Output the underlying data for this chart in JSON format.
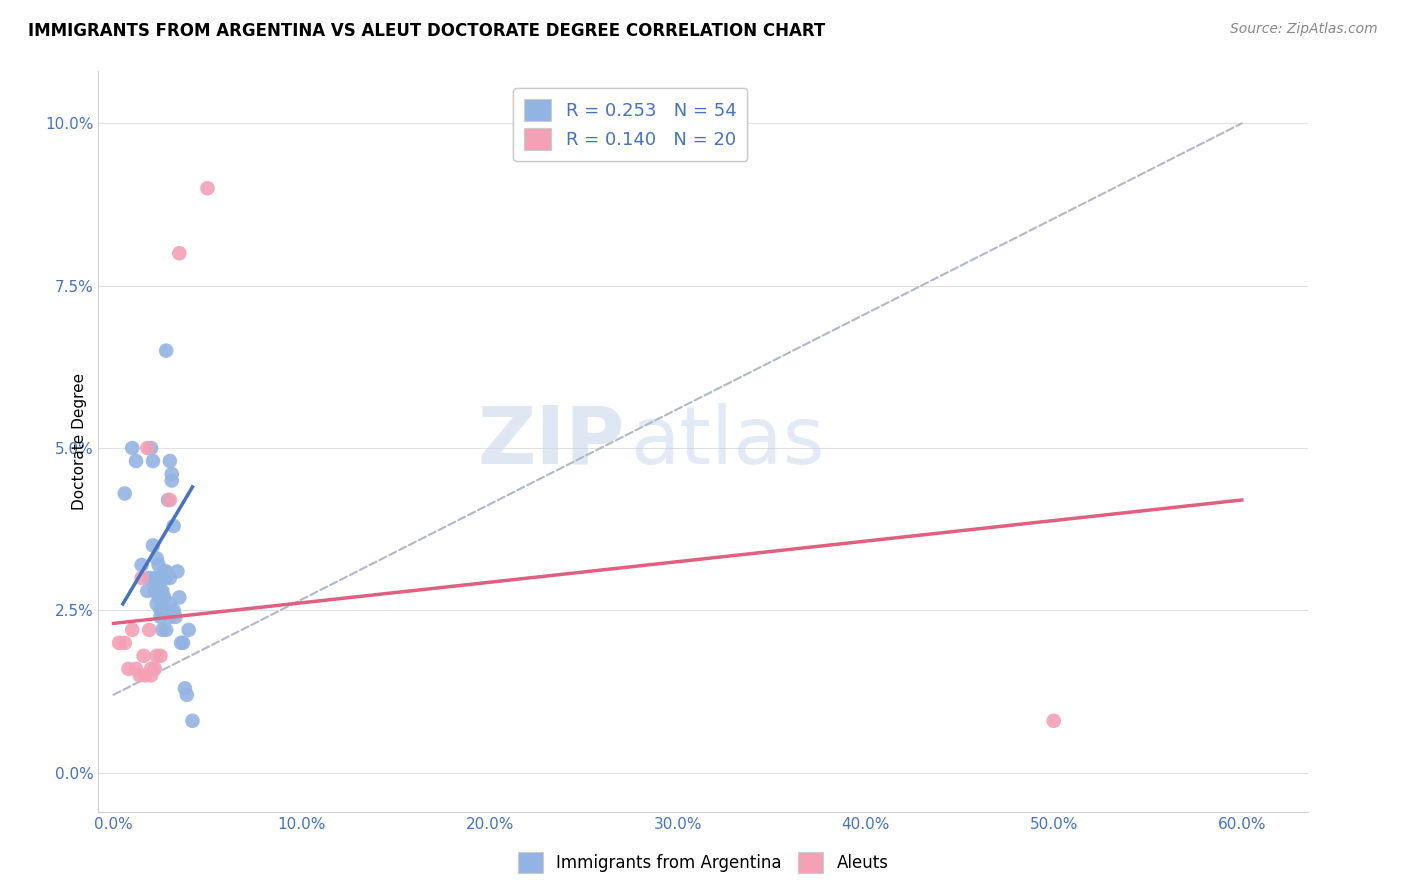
{
  "title": "IMMIGRANTS FROM ARGENTINA VS ALEUT DOCTORATE DEGREE CORRELATION CHART",
  "source": "Source: ZipAtlas.com",
  "xlabel_ticks": [
    "0.0%",
    "10.0%",
    "20.0%",
    "30.0%",
    "40.0%",
    "50.0%",
    "60.0%"
  ],
  "xlabel_tick_vals": [
    0.0,
    0.1,
    0.2,
    0.3,
    0.4,
    0.5,
    0.6
  ],
  "ylabel_ticks": [
    "0.0%",
    "2.5%",
    "5.0%",
    "7.5%",
    "10.0%"
  ],
  "ylabel_tick_vals": [
    0.0,
    0.025,
    0.05,
    0.075,
    0.1
  ],
  "xlim": [
    -0.008,
    0.635
  ],
  "ylim": [
    -0.006,
    0.108
  ],
  "watermark_zip": "ZIP",
  "watermark_atlas": "atlas",
  "legend_label_blue": "R = 0.253   N = 54",
  "legend_label_pink": "R = 0.140   N = 20",
  "legend_bottom_blue": "Immigrants from Argentina",
  "legend_bottom_pink": "Aleuts",
  "blue_color": "#92b4e3",
  "pink_color": "#f4a0b5",
  "blue_line_color": "#4472c4",
  "pink_line_color": "#e06080",
  "dashed_line_color": "#b0b8c8",
  "blue_scatter": [
    [
      0.006,
      0.043
    ],
    [
      0.01,
      0.05
    ],
    [
      0.012,
      0.048
    ],
    [
      0.015,
      0.032
    ],
    [
      0.018,
      0.028
    ],
    [
      0.019,
      0.03
    ],
    [
      0.02,
      0.05
    ],
    [
      0.021,
      0.048
    ],
    [
      0.021,
      0.035
    ],
    [
      0.022,
      0.03
    ],
    [
      0.022,
      0.028
    ],
    [
      0.023,
      0.033
    ],
    [
      0.023,
      0.029
    ],
    [
      0.023,
      0.028
    ],
    [
      0.023,
      0.026
    ],
    [
      0.024,
      0.032
    ],
    [
      0.024,
      0.03
    ],
    [
      0.024,
      0.028
    ],
    [
      0.024,
      0.027
    ],
    [
      0.025,
      0.03
    ],
    [
      0.025,
      0.028
    ],
    [
      0.025,
      0.027
    ],
    [
      0.025,
      0.025
    ],
    [
      0.025,
      0.024
    ],
    [
      0.026,
      0.028
    ],
    [
      0.026,
      0.027
    ],
    [
      0.026,
      0.025
    ],
    [
      0.026,
      0.022
    ],
    [
      0.027,
      0.031
    ],
    [
      0.027,
      0.027
    ],
    [
      0.027,
      0.025
    ],
    [
      0.028,
      0.065
    ],
    [
      0.028,
      0.031
    ],
    [
      0.028,
      0.03
    ],
    [
      0.028,
      0.025
    ],
    [
      0.028,
      0.022
    ],
    [
      0.029,
      0.042
    ],
    [
      0.03,
      0.048
    ],
    [
      0.03,
      0.03
    ],
    [
      0.03,
      0.026
    ],
    [
      0.03,
      0.024
    ],
    [
      0.031,
      0.046
    ],
    [
      0.031,
      0.045
    ],
    [
      0.032,
      0.038
    ],
    [
      0.032,
      0.025
    ],
    [
      0.033,
      0.024
    ],
    [
      0.034,
      0.031
    ],
    [
      0.035,
      0.027
    ],
    [
      0.036,
      0.02
    ],
    [
      0.037,
      0.02
    ],
    [
      0.038,
      0.013
    ],
    [
      0.039,
      0.012
    ],
    [
      0.04,
      0.022
    ],
    [
      0.042,
      0.008
    ]
  ],
  "pink_scatter": [
    [
      0.003,
      0.02
    ],
    [
      0.006,
      0.02
    ],
    [
      0.008,
      0.016
    ],
    [
      0.01,
      0.022
    ],
    [
      0.012,
      0.016
    ],
    [
      0.014,
      0.015
    ],
    [
      0.015,
      0.03
    ],
    [
      0.016,
      0.018
    ],
    [
      0.017,
      0.015
    ],
    [
      0.018,
      0.05
    ],
    [
      0.019,
      0.022
    ],
    [
      0.02,
      0.016
    ],
    [
      0.02,
      0.015
    ],
    [
      0.022,
      0.016
    ],
    [
      0.023,
      0.018
    ],
    [
      0.025,
      0.018
    ],
    [
      0.03,
      0.042
    ],
    [
      0.035,
      0.08
    ],
    [
      0.05,
      0.09
    ],
    [
      0.5,
      0.008
    ]
  ],
  "blue_trend_x": [
    0.005,
    0.042
  ],
  "blue_trend_y": [
    0.026,
    0.044
  ],
  "pink_trend_x": [
    0.0,
    0.6
  ],
  "pink_trend_y": [
    0.023,
    0.042
  ],
  "dashed_trend_x": [
    0.0,
    0.6
  ],
  "dashed_trend_y": [
    0.012,
    0.1
  ],
  "grid_color": "#e0e0e0",
  "tick_color": "#4472c4",
  "title_fontsize": 12,
  "source_fontsize": 10,
  "tick_fontsize": 11,
  "ylabel_fontsize": 11
}
